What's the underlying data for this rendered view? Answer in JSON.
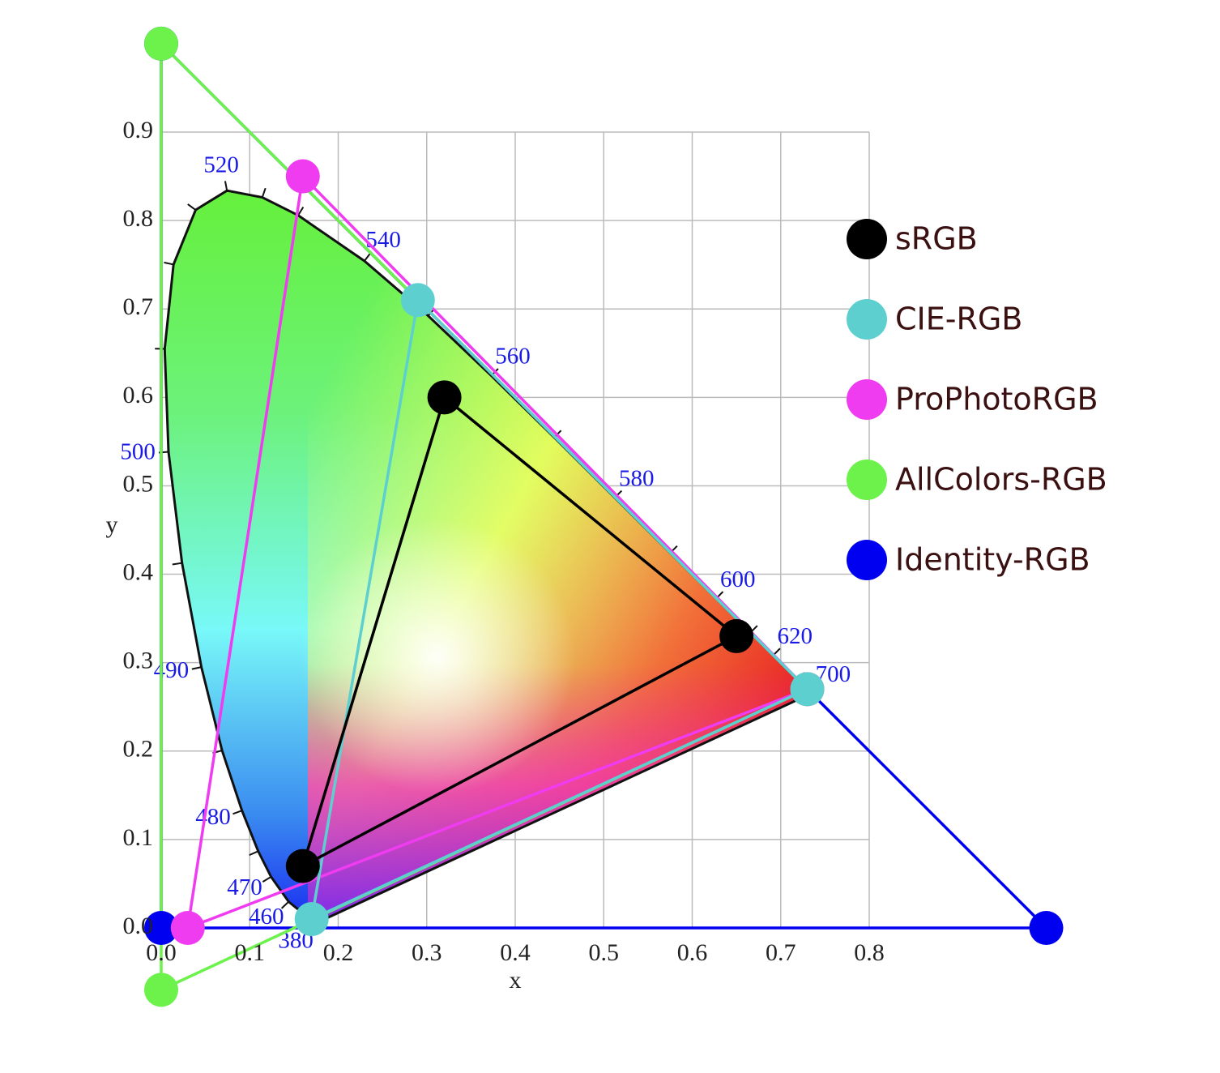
{
  "chart_data": {
    "type": "gamut",
    "xlabel": "x",
    "ylabel": "y",
    "xlim": [
      0,
      0.8
    ],
    "ylim": [
      0,
      0.9
    ],
    "xticks": [
      {
        "value": 0,
        "label": "0.0"
      },
      0.1,
      0.2,
      0.3,
      0.4,
      0.5,
      0.6,
      0.7,
      0.8
    ],
    "yticks": [
      {
        "value": 0,
        "label": "0.0"
      },
      0.1,
      0.2,
      0.3,
      0.4,
      0.5,
      0.6,
      0.7,
      0.8,
      0.9
    ],
    "grid": true,
    "legend": "right",
    "locus": {
      "wavelengths": [
        380,
        460,
        470,
        null,
        480,
        null,
        490,
        null,
        500,
        null,
        null,
        null,
        520,
        null,
        null,
        540,
        null,
        560,
        null,
        580,
        null,
        600,
        null,
        620,
        null,
        700
      ],
      "x": [
        0.1741,
        0.144,
        0.1241,
        0.1096,
        0.0913,
        0.0687,
        0.0454,
        0.0235,
        0.0082,
        0.0039,
        0.0139,
        0.0389,
        0.0743,
        0.1142,
        0.1547,
        0.2296,
        0.3016,
        0.3731,
        0.4441,
        0.5125,
        0.5752,
        0.627,
        0.6658,
        0.6915,
        0.719,
        0.7347
      ],
      "y": [
        0.005,
        0.0297,
        0.0578,
        0.0868,
        0.1327,
        0.2007,
        0.295,
        0.4127,
        0.5384,
        0.6548,
        0.7502,
        0.812,
        0.8338,
        0.8262,
        0.8059,
        0.7543,
        0.6923,
        0.6245,
        0.5547,
        0.4866,
        0.4242,
        0.3725,
        0.334,
        0.3083,
        0.2809,
        0.2653
      ]
    },
    "series": [
      {
        "name": "sRGB",
        "color": "#000000",
        "x": [
          0.65,
          0.32,
          0.16
        ],
        "y": [
          0.33,
          0.6,
          0.07
        ]
      },
      {
        "name": "CIE-RGB",
        "color": "#5ecfcf",
        "x": [
          0.73,
          0.29,
          0.17
        ],
        "y": [
          0.27,
          0.71,
          0.01
        ]
      },
      {
        "name": "ProPhotoRGB",
        "color": "#f03cf0",
        "x": [
          0.73,
          0.16,
          0.03
        ],
        "y": [
          0.27,
          0.85,
          0
        ]
      },
      {
        "name": "AllColors-RGB",
        "color": "#6cf24a",
        "x": [
          0.73,
          0,
          0
        ],
        "y": [
          0.27,
          1,
          -0.07
        ]
      },
      {
        "name": "Identity-RGB",
        "color": "#0000f0",
        "x": [
          1,
          0,
          0
        ],
        "y": [
          0,
          1,
          0
        ]
      }
    ]
  }
}
